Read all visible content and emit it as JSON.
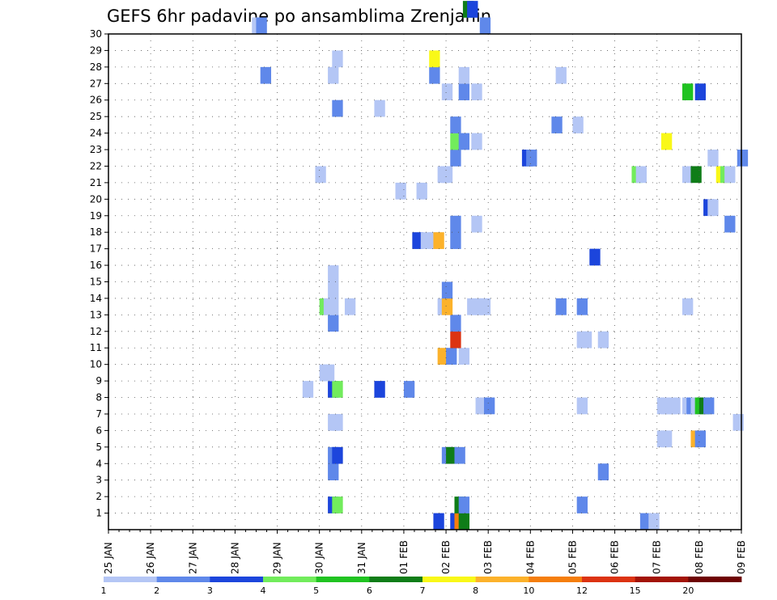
{
  "chart_data": {
    "type": "heatmap",
    "title": "GEFS 6hr padavine po ansamblima Zrenjanin",
    "xlabel": "",
    "ylabel": "",
    "x_tick_labels": [
      "25 JAN",
      "26 JAN",
      "27 JAN",
      "28 JAN",
      "29 JAN",
      "30 JAN",
      "31 JAN",
      "01 FEB",
      "02 FEB",
      "03 FEB",
      "04 FEB",
      "05 FEB",
      "06 FEB",
      "07 FEB",
      "08 FEB",
      "09 FEB"
    ],
    "y_tick_labels": [
      "1",
      "2",
      "3",
      "4",
      "5",
      "6",
      "7",
      "8",
      "9",
      "10",
      "11",
      "12",
      "13",
      "14",
      "15",
      "16",
      "17",
      "18",
      "19",
      "20",
      "21",
      "22",
      "23",
      "24",
      "25",
      "26",
      "27",
      "28",
      "29",
      "30"
    ],
    "grid": true,
    "legend": {
      "placement": "bottom",
      "labels": [
        "1",
        "2",
        "3",
        "4",
        "5",
        "6",
        "7",
        "8",
        "10",
        "12",
        "15",
        "20"
      ],
      "colors": [
        "#b4c6f5",
        "#5f88ea",
        "#1c45dc",
        "#72ec5c",
        "#20c321",
        "#0f7d18",
        "#f9f818",
        "#fcb22b",
        "#f57e0d",
        "#dc3312",
        "#a31407",
        "#6e0303"
      ]
    },
    "cells": [
      {
        "d": 8.1,
        "m": 0,
        "c": 2
      },
      {
        "d": 8.2,
        "m": 0,
        "c": 8
      },
      {
        "d": 8.3,
        "m": 0,
        "c": 5
      },
      {
        "d": 12.6,
        "m": 0,
        "c": 1
      },
      {
        "d": 5.2,
        "m": 1,
        "c": 2
      },
      {
        "d": 5.3,
        "m": 1,
        "c": 3
      },
      {
        "d": 8.2,
        "m": 1,
        "c": 5
      },
      {
        "d": 8.3,
        "m": 1,
        "c": 1
      },
      {
        "d": 11.1,
        "m": 1,
        "c": 1
      },
      {
        "d": 5.2,
        "m": 3,
        "c": 1
      },
      {
        "d": 11.6,
        "m": 3,
        "c": 1
      },
      {
        "d": 5.2,
        "m": 4,
        "c": 1
      },
      {
        "d": 5.3,
        "m": 4,
        "c": 2
      },
      {
        "d": 7.9,
        "m": 4,
        "c": 1
      },
      {
        "d": 8.0,
        "m": 4,
        "c": 5
      },
      {
        "d": 8.2,
        "m": 4,
        "c": 1
      },
      {
        "d": 13.0,
        "m": 5,
        "c": 0
      },
      {
        "d": 13.1,
        "m": 5,
        "c": 0
      },
      {
        "d": 13.8,
        "m": 5,
        "c": 7
      },
      {
        "d": 13.9,
        "m": 5,
        "c": 1
      },
      {
        "d": 5.2,
        "m": 6,
        "c": 0
      },
      {
        "d": 5.3,
        "m": 6,
        "c": 0
      },
      {
        "d": 14.8,
        "m": 6,
        "c": 0
      },
      {
        "d": 8.7,
        "m": 7,
        "c": 0
      },
      {
        "d": 8.8,
        "m": 7,
        "c": 0
      },
      {
        "d": 8.9,
        "m": 7,
        "c": 1
      },
      {
        "d": 11.1,
        "m": 7,
        "c": 0
      },
      {
        "d": 13.0,
        "m": 7,
        "c": 0
      },
      {
        "d": 13.1,
        "m": 7,
        "c": 0
      },
      {
        "d": 13.2,
        "m": 7,
        "c": 0
      },
      {
        "d": 13.3,
        "m": 7,
        "c": 0
      },
      {
        "d": 13.6,
        "m": 7,
        "c": 0
      },
      {
        "d": 13.7,
        "m": 7,
        "c": 1
      },
      {
        "d": 13.8,
        "m": 7,
        "c": 0
      },
      {
        "d": 13.9,
        "m": 7,
        "c": 4
      },
      {
        "d": 14.0,
        "m": 7,
        "c": 5
      },
      {
        "d": 14.1,
        "m": 7,
        "c": 1
      },
      {
        "d": 4.6,
        "m": 8,
        "c": 0
      },
      {
        "d": 5.2,
        "m": 8,
        "c": 2
      },
      {
        "d": 5.3,
        "m": 8,
        "c": 3
      },
      {
        "d": 6.3,
        "m": 8,
        "c": 2
      },
      {
        "d": 7.0,
        "m": 8,
        "c": 1
      },
      {
        "d": 5.0,
        "m": 9,
        "c": 0
      },
      {
        "d": 5.1,
        "m": 9,
        "c": 0
      },
      {
        "d": 7.8,
        "m": 10,
        "c": 7
      },
      {
        "d": 8.0,
        "m": 10,
        "c": 1
      },
      {
        "d": 8.3,
        "m": 10,
        "c": 0
      },
      {
        "d": 11.1,
        "m": 11,
        "c": 0
      },
      {
        "d": 11.2,
        "m": 11,
        "c": 0
      },
      {
        "d": 11.6,
        "m": 11,
        "c": 0
      },
      {
        "d": 8.1,
        "m": 11,
        "c": 9
      },
      {
        "d": 5.2,
        "m": 12,
        "c": 1
      },
      {
        "d": 8.1,
        "m": 12,
        "c": 1
      },
      {
        "d": 5.0,
        "m": 13,
        "c": 3
      },
      {
        "d": 5.1,
        "m": 13,
        "c": 0
      },
      {
        "d": 5.2,
        "m": 13,
        "c": 0
      },
      {
        "d": 5.6,
        "m": 13,
        "c": 0
      },
      {
        "d": 7.8,
        "m": 13,
        "c": 0
      },
      {
        "d": 7.9,
        "m": 13,
        "c": 7
      },
      {
        "d": 8.5,
        "m": 13,
        "c": 0
      },
      {
        "d": 8.6,
        "m": 13,
        "c": 0
      },
      {
        "d": 8.7,
        "m": 13,
        "c": 0
      },
      {
        "d": 8.8,
        "m": 13,
        "c": 0
      },
      {
        "d": 10.6,
        "m": 13,
        "c": 1
      },
      {
        "d": 11.1,
        "m": 13,
        "c": 1
      },
      {
        "d": 13.6,
        "m": 13,
        "c": 0
      },
      {
        "d": 5.2,
        "m": 14,
        "c": 0
      },
      {
        "d": 7.9,
        "m": 14,
        "c": 1
      },
      {
        "d": 5.2,
        "m": 15,
        "c": 0
      },
      {
        "d": 11.4,
        "m": 16,
        "c": 2
      },
      {
        "d": 7.2,
        "m": 17,
        "c": 2
      },
      {
        "d": 7.6,
        "m": 17,
        "c": 0
      },
      {
        "d": 7.7,
        "m": 17,
        "c": 7
      },
      {
        "d": 8.1,
        "m": 17,
        "c": 1
      },
      {
        "d": 7.4,
        "m": 17,
        "c": 0
      },
      {
        "d": 8.1,
        "m": 18,
        "c": 1
      },
      {
        "d": 8.6,
        "m": 18,
        "c": 0
      },
      {
        "d": 14.6,
        "m": 18,
        "c": 1
      },
      {
        "d": 14.1,
        "m": 19,
        "c": 2
      },
      {
        "d": 14.2,
        "m": 19,
        "c": 0
      },
      {
        "d": 6.8,
        "m": 20,
        "c": 0
      },
      {
        "d": 7.3,
        "m": 20,
        "c": 0
      },
      {
        "d": 4.9,
        "m": 21,
        "c": 0
      },
      {
        "d": 7.8,
        "m": 21,
        "c": 0
      },
      {
        "d": 7.9,
        "m": 21,
        "c": 0
      },
      {
        "d": 12.4,
        "m": 21,
        "c": 3
      },
      {
        "d": 12.5,
        "m": 21,
        "c": 0
      },
      {
        "d": 13.6,
        "m": 21,
        "c": 0
      },
      {
        "d": 13.8,
        "m": 21,
        "c": 5
      },
      {
        "d": 14.4,
        "m": 21,
        "c": 6
      },
      {
        "d": 14.5,
        "m": 21,
        "c": 3
      },
      {
        "d": 14.6,
        "m": 21,
        "c": 0
      },
      {
        "d": 9.8,
        "m": 22,
        "c": 2
      },
      {
        "d": 9.9,
        "m": 22,
        "c": 1
      },
      {
        "d": 8.1,
        "m": 22,
        "c": 1
      },
      {
        "d": 14.2,
        "m": 22,
        "c": 0
      },
      {
        "d": 14.9,
        "m": 22,
        "c": 1
      },
      {
        "d": 8.1,
        "m": 23,
        "c": 3
      },
      {
        "d": 8.3,
        "m": 23,
        "c": 1
      },
      {
        "d": 8.6,
        "m": 23,
        "c": 0
      },
      {
        "d": 13.1,
        "m": 23,
        "c": 6
      },
      {
        "d": 8.1,
        "m": 24,
        "c": 1
      },
      {
        "d": 10.5,
        "m": 24,
        "c": 1
      },
      {
        "d": 11.0,
        "m": 24,
        "c": 0
      },
      {
        "d": 5.3,
        "m": 25,
        "c": 1
      },
      {
        "d": 6.3,
        "m": 25,
        "c": 0
      },
      {
        "d": 7.9,
        "m": 26,
        "c": 0
      },
      {
        "d": 8.3,
        "m": 26,
        "c": 1
      },
      {
        "d": 8.6,
        "m": 26,
        "c": 0
      },
      {
        "d": 13.6,
        "m": 26,
        "c": 4
      },
      {
        "d": 13.9,
        "m": 26,
        "c": 2
      },
      {
        "d": 3.6,
        "m": 27,
        "c": 1
      },
      {
        "d": 5.2,
        "m": 27,
        "c": 0
      },
      {
        "d": 7.6,
        "m": 27,
        "c": 1
      },
      {
        "d": 8.3,
        "m": 27,
        "c": 0
      },
      {
        "d": 10.6,
        "m": 27,
        "c": 0
      },
      {
        "d": 5.3,
        "m": 28,
        "c": 0
      },
      {
        "d": 7.6,
        "m": 28,
        "c": 6
      },
      {
        "d": 3.4,
        "m": 30,
        "c": 0
      },
      {
        "d": 3.5,
        "m": 30,
        "c": 1
      },
      {
        "d": 8.8,
        "m": 30,
        "c": 1
      },
      {
        "d": 8.4,
        "m": 31,
        "c": 5
      },
      {
        "d": 8.5,
        "m": 31,
        "c": 2
      },
      {
        "d": 7.7,
        "m": 0,
        "c": 2
      },
      {
        "d": 12.8,
        "m": 0,
        "c": 0
      }
    ]
  }
}
